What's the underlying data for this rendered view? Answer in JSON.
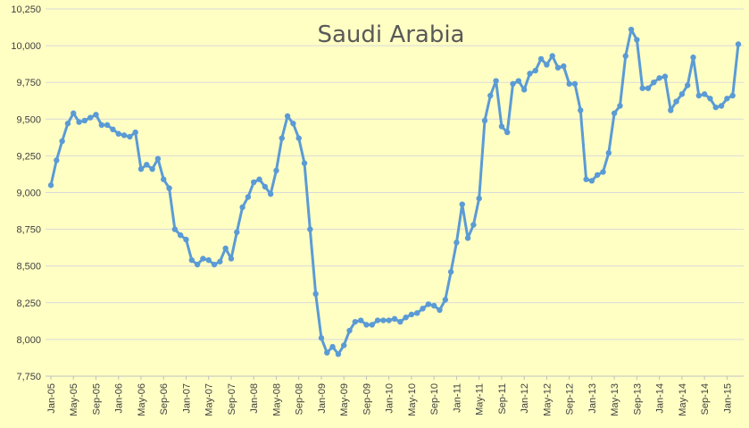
{
  "chart_data": {
    "type": "line",
    "title": "Saudi Arabia",
    "xlabel": "",
    "ylabel": "",
    "ylim": [
      7750,
      10250
    ],
    "yticks": [
      7750,
      8000,
      8250,
      8500,
      8750,
      9000,
      9250,
      9500,
      9750,
      10000,
      10250
    ],
    "ytick_labels": [
      "7,750",
      "8,000",
      "8,250",
      "8,500",
      "8,750",
      "9,000",
      "9,250",
      "9,500",
      "9,750",
      "10,000",
      "10,250"
    ],
    "xtick_labels": [
      "Jan-05",
      "May-05",
      "Sep-05",
      "Jan-06",
      "May-06",
      "Sep-06",
      "Jan-07",
      "May-07",
      "Sep-07",
      "Jan-08",
      "May-08",
      "Sep-08",
      "Jan-09",
      "May-09",
      "Sep-09",
      "Jan-10",
      "May-10",
      "Sep-10",
      "Jan-11",
      "May-11",
      "Sep-11",
      "Jan-12",
      "May-12",
      "Sep-12",
      "Jan-13",
      "May-13",
      "Sep-13",
      "Jan-14",
      "May-14",
      "Sep-14",
      "Jan-15"
    ],
    "grid": "horizontal",
    "legend": "none",
    "line_color": "#5B9BD5",
    "x_start": "Jan-05",
    "x_end": "Mar-15",
    "series": [
      {
        "values": [
          9050,
          9220,
          9350,
          9470,
          9540,
          9480,
          9490,
          9510,
          9530,
          9460,
          9460,
          9430,
          9400,
          9390,
          9380,
          9410,
          9160,
          9190,
          9160,
          9230,
          9090,
          9030,
          8750,
          8710,
          8680,
          8540,
          8510,
          8550,
          8540,
          8510,
          8530,
          8620,
          8550,
          8730,
          8900,
          8970,
          9070,
          9090,
          9040,
          8990,
          9150,
          9370,
          9520,
          9470,
          9370,
          9200,
          8750,
          8310,
          8010,
          7910,
          7950,
          7900,
          7960,
          8060,
          8120,
          8130,
          8100,
          8100,
          8130,
          8130,
          8130,
          8140,
          8120,
          8150,
          8170,
          8180,
          8210,
          8240,
          8230,
          8200,
          8270,
          8460,
          8660,
          8920,
          8690,
          8780,
          8960,
          9490,
          9660,
          9760,
          9450,
          9410,
          9740,
          9760,
          9700,
          9810,
          9830,
          9910,
          9870,
          9930,
          9850,
          9860,
          9740,
          9740,
          9560,
          9090,
          9080,
          9120,
          9140,
          9270,
          9540,
          9590,
          9930,
          10110,
          10040,
          9710,
          9710,
          9750,
          9780,
          9790,
          9560,
          9620,
          9670,
          9730,
          9920,
          9660,
          9670,
          9640,
          9580,
          9590,
          9640,
          9660,
          10010
        ]
      }
    ]
  }
}
